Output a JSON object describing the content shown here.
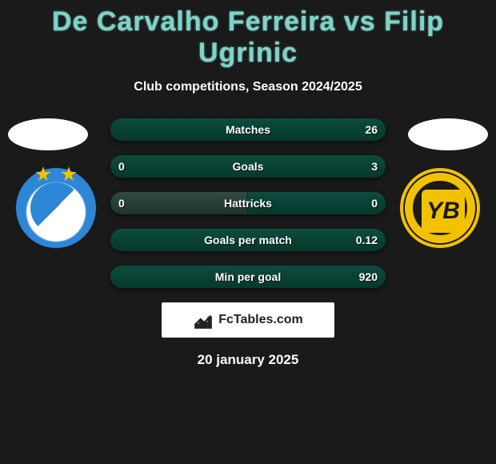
{
  "title": "De Carvalho Ferreira vs Filip Ugrinic",
  "subtitle": "Club competitions, Season 2024/2025",
  "brand": "FcTables.com",
  "date": "20 january 2025",
  "colors": {
    "accent": "#7fd4c8",
    "bar_bg": "#203630",
    "fill_left": "#304a42",
    "fill_right": "#06382c",
    "text": "#ffffff"
  },
  "left_team": "Grasshoppers",
  "right_team": "Young Boys",
  "stats": [
    {
      "label": "Matches",
      "left_val": "",
      "right_val": "26",
      "left_pct": 0,
      "right_pct": 100
    },
    {
      "label": "Goals",
      "left_val": "0",
      "right_val": "3",
      "left_pct": 0,
      "right_pct": 100
    },
    {
      "label": "Hattricks",
      "left_val": "0",
      "right_val": "0",
      "left_pct": 50,
      "right_pct": 50
    },
    {
      "label": "Goals per match",
      "left_val": "",
      "right_val": "0.12",
      "left_pct": 0,
      "right_pct": 100
    },
    {
      "label": "Min per goal",
      "left_val": "",
      "right_val": "920",
      "left_pct": 0,
      "right_pct": 100
    }
  ]
}
